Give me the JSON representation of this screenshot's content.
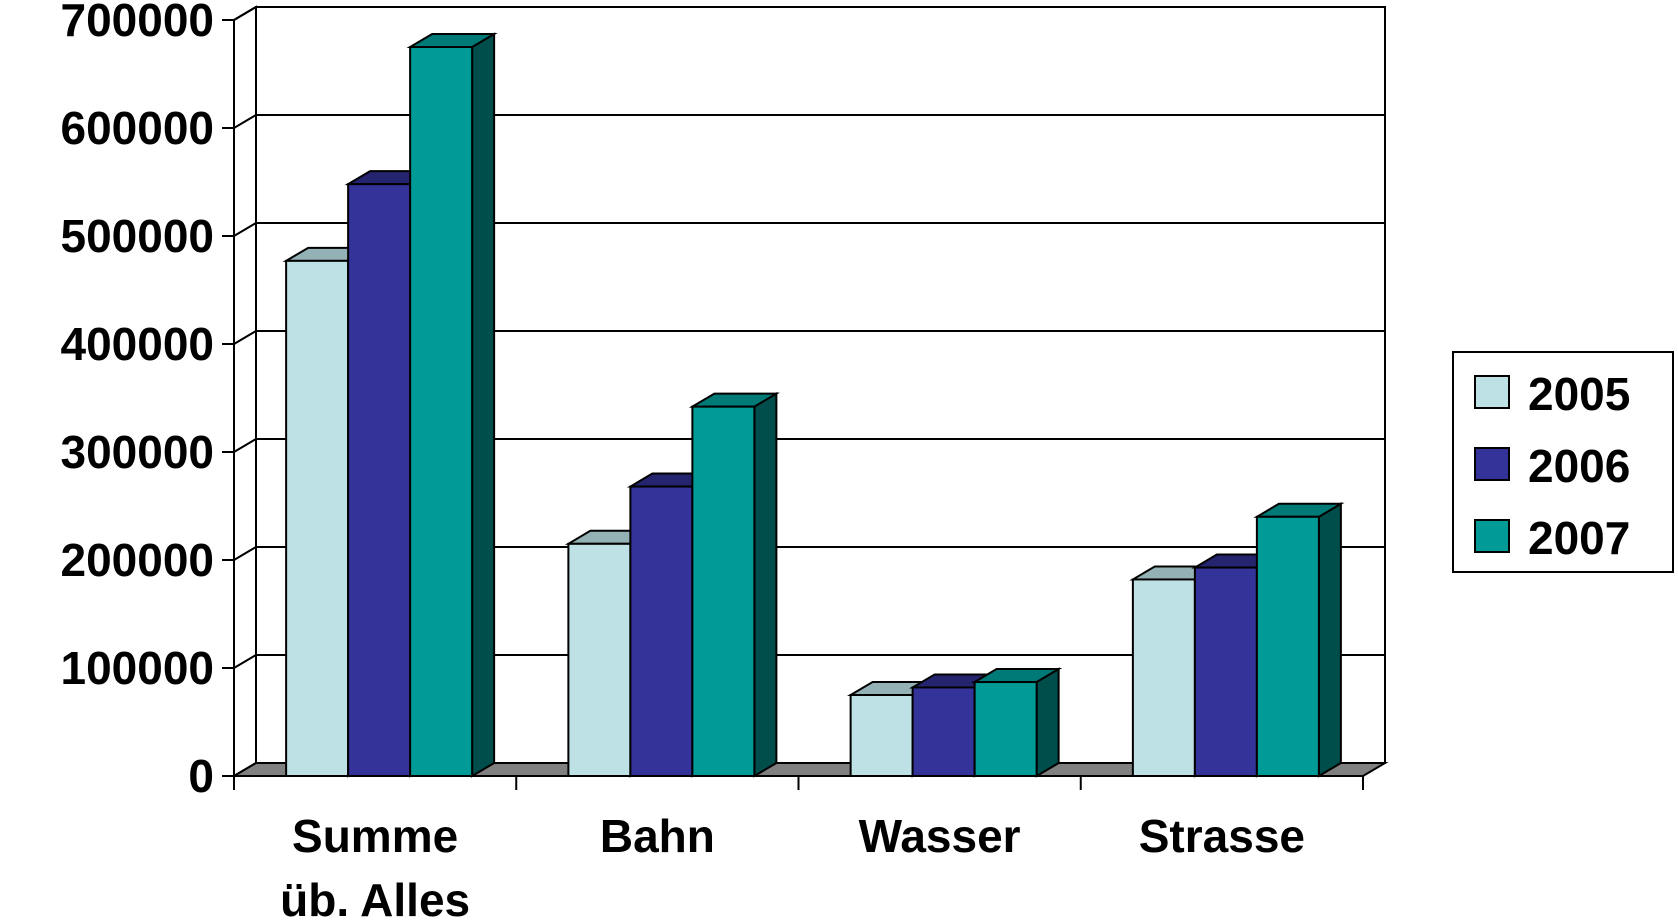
{
  "chart_data": {
    "type": "bar",
    "categories": [
      "Summe\nüb. Alles",
      "Bahn",
      "Wasser",
      "Strasse"
    ],
    "series": [
      {
        "name": "2005",
        "values": [
          477000,
          215000,
          75000,
          182000
        ],
        "color": "#bde1e4",
        "top": "#94b2b5",
        "side": "#5d7a7d"
      },
      {
        "name": "2006",
        "values": [
          548000,
          268000,
          82000,
          193000
        ],
        "color": "#343399",
        "top": "#25246e",
        "side": "#1b1a55"
      },
      {
        "name": "2007",
        "values": [
          675000,
          342000,
          87000,
          240000
        ],
        "color": "#009b97",
        "top": "#007a77",
        "side": "#004e4c"
      }
    ],
    "yticks": [
      "0",
      "100000",
      "200000",
      "300000",
      "400000",
      "500000",
      "600000",
      "700000"
    ],
    "ylim": [
      0,
      700000
    ],
    "legend_position": "right",
    "grid": true,
    "floor_color": "#808080"
  }
}
